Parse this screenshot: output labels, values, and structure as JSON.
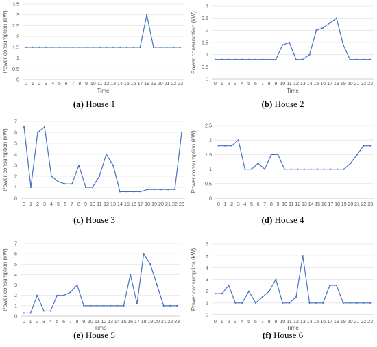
{
  "chart_data": [
    {
      "type": "line",
      "caption_label": "(a)",
      "caption_text": "House 1",
      "xlabel": "Time",
      "ylabel": "Power consumption (kW)",
      "categories": [
        "0",
        "1",
        "2",
        "3",
        "4",
        "5",
        "6",
        "7",
        "8",
        "9",
        "10",
        "11",
        "12",
        "13",
        "14",
        "15",
        "16",
        "17",
        "18",
        "19",
        "20",
        "21",
        "22",
        "23"
      ],
      "ylim": [
        0,
        3.5
      ],
      "yticks": [
        "0",
        "0.5",
        "1",
        "1.5",
        "2",
        "2.5",
        "3",
        "3.5"
      ],
      "grid": true,
      "line_color": "#4472C4",
      "values": [
        1.5,
        1.5,
        1.5,
        1.5,
        1.5,
        1.5,
        1.5,
        1.5,
        1.5,
        1.5,
        1.5,
        1.5,
        1.5,
        1.5,
        1.5,
        1.5,
        1.5,
        1.5,
        3.0,
        1.5,
        1.5,
        1.5,
        1.5,
        1.5
      ]
    },
    {
      "type": "line",
      "caption_label": "(b)",
      "caption_text": "House 2",
      "xlabel": "Time",
      "ylabel": "Power consumption (kW)",
      "categories": [
        "0",
        "1",
        "2",
        "3",
        "4",
        "5",
        "6",
        "7",
        "8",
        "9",
        "10",
        "11",
        "12",
        "13",
        "14",
        "15",
        "16",
        "17",
        "18",
        "19",
        "20",
        "21",
        "22",
        "23"
      ],
      "ylim": [
        0,
        3
      ],
      "yticks": [
        "0",
        "0.5",
        "1",
        "1.5",
        "2",
        "2.5",
        "3"
      ],
      "grid": true,
      "line_color": "#4472C4",
      "values": [
        0.8,
        0.8,
        0.8,
        0.8,
        0.8,
        0.8,
        0.8,
        0.8,
        0.8,
        0.8,
        1.4,
        1.5,
        0.8,
        0.8,
        1.0,
        2.0,
        2.1,
        2.3,
        2.5,
        1.4,
        0.8,
        0.8,
        0.8,
        0.8
      ]
    },
    {
      "type": "line",
      "caption_label": "(c)",
      "caption_text": "House 3",
      "xlabel": "",
      "ylabel": "Power consumption (kW)",
      "categories": [
        "0",
        "1",
        "2",
        "3",
        "4",
        "5",
        "6",
        "7",
        "8",
        "9",
        "10",
        "11",
        "12",
        "13",
        "14",
        "15",
        "16",
        "17",
        "18",
        "19",
        "20",
        "21",
        "22",
        "23"
      ],
      "ylim": [
        0,
        7
      ],
      "yticks": [
        "0",
        "1",
        "2",
        "3",
        "4",
        "5",
        "6",
        "7"
      ],
      "grid": true,
      "line_color": "#4472C4",
      "values": [
        6.5,
        1.0,
        6.0,
        6.5,
        2.0,
        1.5,
        1.3,
        1.3,
        3.0,
        1.0,
        1.0,
        2.0,
        4.0,
        3.0,
        0.6,
        0.6,
        0.6,
        0.6,
        0.8,
        0.8,
        0.8,
        0.8,
        0.8,
        6.0
      ]
    },
    {
      "type": "line",
      "caption_label": "(d)",
      "caption_text": "House 4",
      "xlabel": "",
      "ylabel": "Power consumption (kW)",
      "categories": [
        "0",
        "1",
        "2",
        "3",
        "4",
        "5",
        "6",
        "7",
        "8",
        "9",
        "10",
        "11",
        "12",
        "13",
        "14",
        "15",
        "16",
        "17",
        "18",
        "19",
        "20",
        "21",
        "22",
        "23"
      ],
      "ylim": [
        0,
        2.5
      ],
      "yticks": [
        "0",
        "0.5",
        "1",
        "1.5",
        "2",
        "2.5"
      ],
      "grid": true,
      "line_color": "#4472C4",
      "values": [
        1.8,
        1.8,
        1.8,
        2.0,
        1.0,
        1.0,
        1.2,
        1.0,
        1.5,
        1.5,
        1.0,
        1.0,
        1.0,
        1.0,
        1.0,
        1.0,
        1.0,
        1.0,
        1.0,
        1.0,
        1.2,
        1.5,
        1.8,
        1.8
      ]
    },
    {
      "type": "line",
      "caption_label": "(e)",
      "caption_text": "House 5",
      "xlabel": "Time",
      "ylabel": "Power consumption (kW)",
      "categories": [
        "0",
        "1",
        "2",
        "3",
        "4",
        "5",
        "6",
        "7",
        "8",
        "9",
        "10",
        "11",
        "12",
        "13",
        "14",
        "15",
        "16",
        "17",
        "18",
        "19",
        "20",
        "21",
        "22",
        "23"
      ],
      "ylim": [
        0,
        7
      ],
      "yticks": [
        "0",
        "1",
        "2",
        "3",
        "4",
        "5",
        "6",
        "7"
      ],
      "grid": true,
      "line_color": "#4472C4",
      "values": [
        0.3,
        0.3,
        2.0,
        0.5,
        0.5,
        2.0,
        2.0,
        2.3,
        3.0,
        1.0,
        1.0,
        1.0,
        1.0,
        1.0,
        1.0,
        1.0,
        4.0,
        1.2,
        6.0,
        5.0,
        3.0,
        1.0,
        1.0,
        1.0
      ]
    },
    {
      "type": "line",
      "caption_label": "(f)",
      "caption_text": "House 6",
      "xlabel": "Time",
      "ylabel": "Power consumption (kW)",
      "categories": [
        "0",
        "1",
        "2",
        "3",
        "4",
        "5",
        "6",
        "7",
        "8",
        "9",
        "10",
        "11",
        "12",
        "13",
        "14",
        "15",
        "16",
        "17",
        "18",
        "19",
        "20",
        "21",
        "22",
        "23"
      ],
      "ylim": [
        0,
        6
      ],
      "yticks": [
        "0",
        "1",
        "2",
        "3",
        "4",
        "5",
        "6"
      ],
      "grid": true,
      "line_color": "#4472C4",
      "values": [
        1.8,
        1.8,
        2.5,
        1.0,
        1.0,
        2.0,
        1.0,
        1.5,
        2.0,
        3.0,
        1.0,
        1.0,
        1.5,
        5.0,
        1.0,
        1.0,
        1.0,
        2.5,
        2.5,
        1.0,
        1.0,
        1.0,
        1.0,
        1.0
      ]
    }
  ]
}
